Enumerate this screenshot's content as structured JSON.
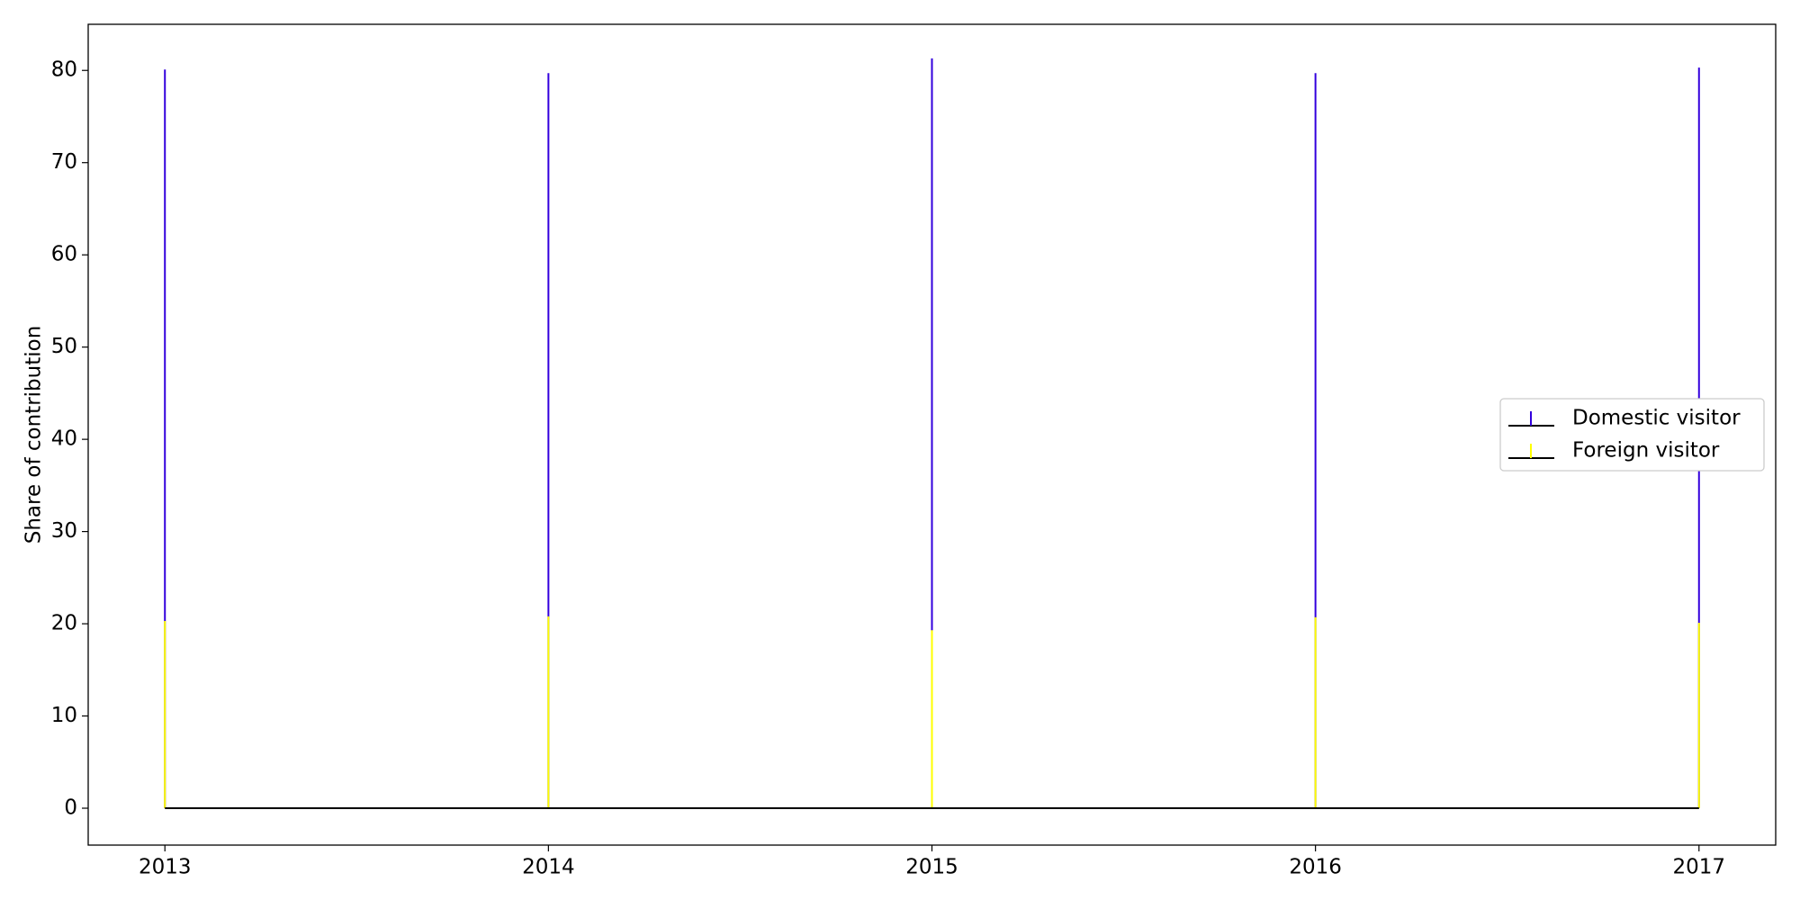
{
  "chart_data": {
    "type": "stem",
    "ylabel": "Share of contribution",
    "x": [
      2013,
      2014,
      2015,
      2016,
      2017
    ],
    "series": [
      {
        "name": "Domestic visitor",
        "color": "#3300dd",
        "values": [
          80.1,
          79.7,
          81.3,
          79.7,
          80.3
        ]
      },
      {
        "name": "Foreign visitor",
        "color": "#ffff00",
        "values": [
          20.3,
          20.8,
          19.3,
          20.7,
          20.1
        ]
      }
    ],
    "xlim": [
      2012.8,
      2017.2
    ],
    "xticks": [
      2013,
      2014,
      2015,
      2016,
      2017
    ],
    "ylim": [
      -4,
      85
    ],
    "yticks": [
      0,
      10,
      20,
      30,
      40,
      50,
      60,
      70,
      80
    ],
    "baseline_color": "#000000",
    "legend": "center right"
  }
}
